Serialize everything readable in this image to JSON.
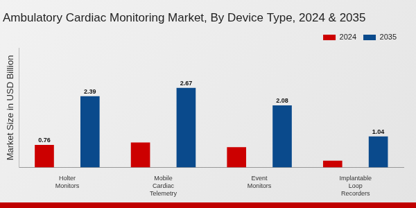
{
  "chart_data": {
    "type": "bar",
    "title": "Ambulatory Cardiac Monitoring Market, By Device Type, 2024 & 2035",
    "y_label": "Market Size in USD Billion",
    "categories": [
      "Holter Monitors",
      "Mobile Cardiac Telemetry",
      "Event Monitors",
      "Implantable Loop Recorders"
    ],
    "series": [
      {
        "name": "2024",
        "color": "#cc0000",
        "values": [
          0.76,
          0.84,
          0.68,
          0.23
        ],
        "value_labels": [
          "0.76",
          null,
          null,
          null
        ]
      },
      {
        "name": "2035",
        "color": "#0a4a8c",
        "values": [
          2.39,
          2.67,
          2.08,
          1.04
        ]
      }
    ],
    "ylim": [
      0,
      4
    ],
    "grid": false,
    "legend": "top-right",
    "data_labels": true,
    "tick_labels": "x"
  }
}
